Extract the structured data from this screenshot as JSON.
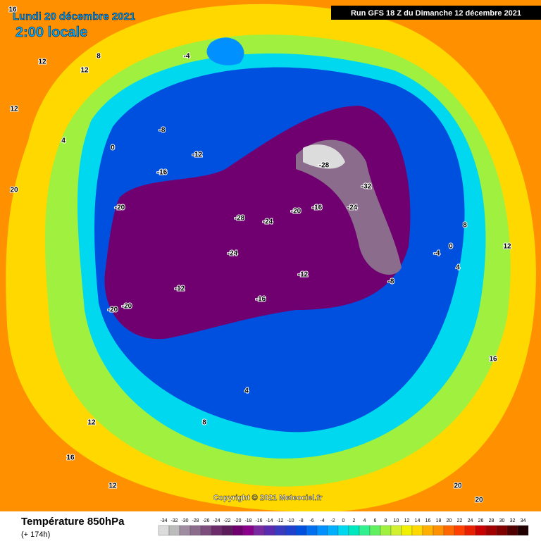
{
  "header": {
    "date": "Lundi 20 décembre 2021",
    "time": "2:00 locale",
    "run": "Run GFS 18 Z du Dimanche 12 décembre 2021"
  },
  "copyright": "Copyright © 2021 Meteociel.fr",
  "footer": {
    "title": "Température 850hPa",
    "lead": "(+ 174h)"
  },
  "legend": {
    "values": [
      -34,
      -32,
      -30,
      -28,
      -26,
      -24,
      -22,
      -20,
      -18,
      -16,
      -14,
      -12,
      -10,
      -8,
      -6,
      -4,
      -2,
      0,
      2,
      4,
      6,
      8,
      10,
      12,
      14,
      16,
      18,
      20,
      22,
      24,
      26,
      28,
      30,
      32,
      34
    ],
    "colors": [
      "#dcdcdc",
      "#bcbcbc",
      "#a08ca0",
      "#8c6c8c",
      "#7c4c7c",
      "#6c2c6c",
      "#5c1c5c",
      "#700070",
      "#8a008a",
      "#7a2aa0",
      "#5a2ab0",
      "#3a3ac0",
      "#2040d0",
      "#0050e0",
      "#0070f0",
      "#0090ff",
      "#00b0ff",
      "#00d8f0",
      "#00e8c0",
      "#30f090",
      "#60f060",
      "#a0f040",
      "#d0f030",
      "#f0f000",
      "#ffd800",
      "#ffb000",
      "#ff9000",
      "#ff6800",
      "#ff4000",
      "#e82000",
      "#c80000",
      "#a00000",
      "#800000",
      "#500000",
      "#200000"
    ]
  },
  "map_labels": [
    16,
    12,
    12,
    12,
    8,
    4,
    0,
    -4,
    -8,
    -12,
    -16,
    -20,
    -24,
    -28,
    -32,
    -28,
    -24,
    -20,
    -16,
    -12,
    -8,
    -4,
    0,
    4,
    8,
    12,
    16,
    20,
    20,
    -20,
    -20,
    -24,
    -16,
    -12,
    4,
    8,
    12,
    16,
    12,
    20
  ]
}
